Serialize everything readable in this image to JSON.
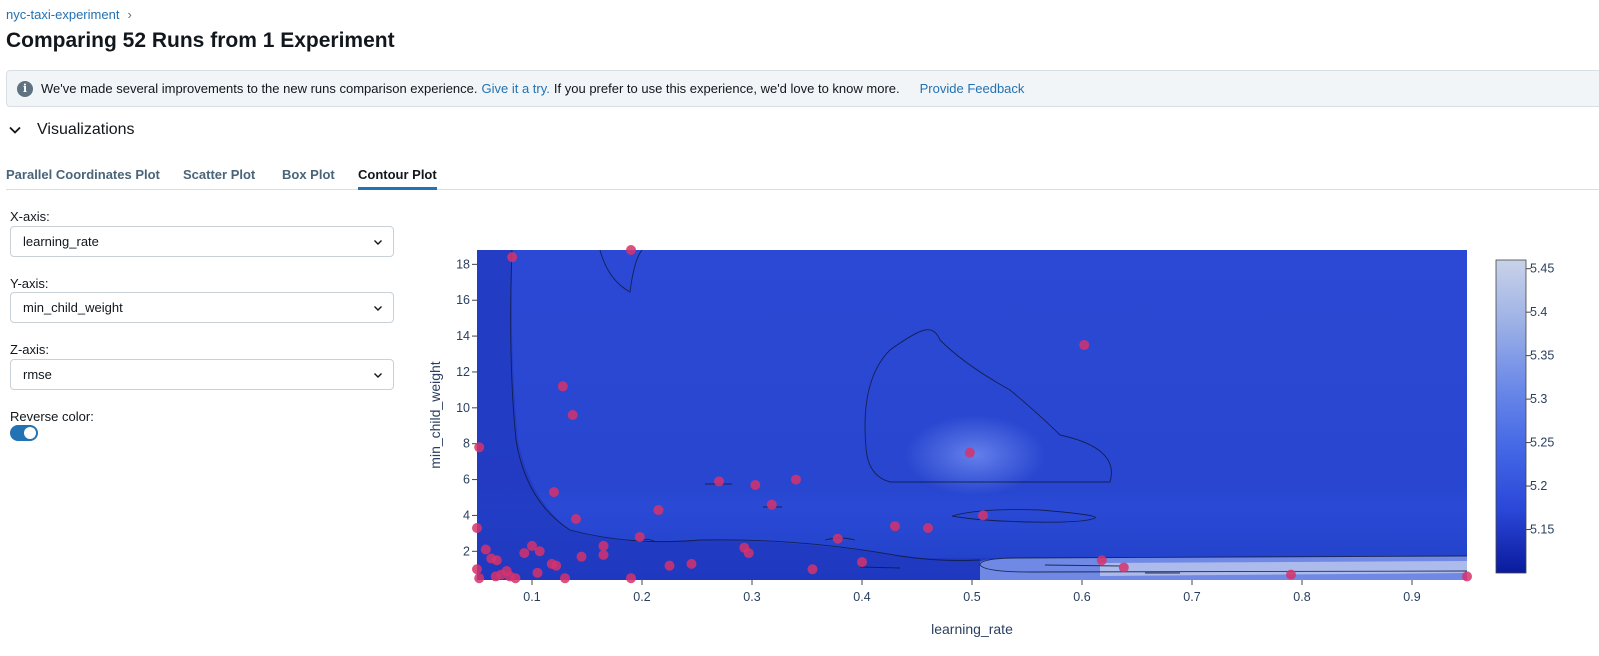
{
  "breadcrumb": {
    "experiment": "nyc-taxi-experiment",
    "separator": "›"
  },
  "page": {
    "title": "Comparing 52 Runs from 1 Experiment"
  },
  "banner": {
    "icon": "info-icon",
    "message_a": "We've made several improvements to the new runs comparison experience.",
    "link_text": "Give it a try.",
    "message_b": "If you prefer to use this experience, we'd love to know more.",
    "feedback": "Provide Feedback"
  },
  "visualizations": {
    "label": "Visualizations",
    "icon": "chevron-down-icon"
  },
  "tabs": [
    {
      "label": "Parallel Coordinates Plot",
      "active": false
    },
    {
      "label": "Scatter Plot",
      "active": false
    },
    {
      "label": "Box Plot",
      "active": false
    },
    {
      "label": "Contour Plot",
      "active": true
    }
  ],
  "controls": {
    "x_axis": {
      "label": "X-axis:",
      "value": "learning_rate"
    },
    "y_axis": {
      "label": "Y-axis:",
      "value": "min_child_weight"
    },
    "z_axis": {
      "label": "Z-axis:",
      "value": "rmse"
    },
    "reverse_color": {
      "label": "Reverse color:",
      "on": true
    }
  },
  "chart_data": {
    "type": "contour",
    "xlabel": "learning_rate",
    "ylabel": "min_child_weight",
    "xlim": [
      0.05,
      0.95
    ],
    "ylim": [
      0.4,
      18.8
    ],
    "x_ticks": [
      "0.1",
      "0.2",
      "0.3",
      "0.4",
      "0.5",
      "0.6",
      "0.7",
      "0.8",
      "0.9"
    ],
    "y_ticks": [
      "2",
      "4",
      "6",
      "8",
      "10",
      "12",
      "14",
      "16",
      "18"
    ],
    "colorbar": {
      "range": [
        5.1,
        5.46
      ],
      "ticks": [
        "5.15",
        "5.2",
        "5.25",
        "5.3",
        "5.35",
        "5.4",
        "5.45"
      ],
      "colors": [
        "#0a1a9c",
        "#2a47d8",
        "#4468e6",
        "#6c8ae8",
        "#9db1e6",
        "#c9d2e8"
      ]
    },
    "point_color": "#d6336c",
    "points": [
      [
        0.082,
        18.4
      ],
      [
        0.19,
        18.8
      ],
      [
        0.052,
        7.8
      ],
      [
        0.128,
        11.2
      ],
      [
        0.137,
        9.6
      ],
      [
        0.12,
        5.3
      ],
      [
        0.14,
        3.8
      ],
      [
        0.05,
        3.3
      ],
      [
        0.058,
        2.1
      ],
      [
        0.063,
        1.6
      ],
      [
        0.068,
        1.5
      ],
      [
        0.05,
        1.0
      ],
      [
        0.052,
        0.5
      ],
      [
        0.067,
        0.6
      ],
      [
        0.072,
        0.7
      ],
      [
        0.077,
        0.9
      ],
      [
        0.08,
        0.6
      ],
      [
        0.085,
        0.5
      ],
      [
        0.093,
        1.9
      ],
      [
        0.1,
        2.3
      ],
      [
        0.105,
        0.8
      ],
      [
        0.107,
        2.0
      ],
      [
        0.118,
        1.3
      ],
      [
        0.122,
        1.2
      ],
      [
        0.13,
        0.5
      ],
      [
        0.145,
        1.7
      ],
      [
        0.165,
        2.3
      ],
      [
        0.165,
        1.8
      ],
      [
        0.19,
        0.5
      ],
      [
        0.198,
        2.8
      ],
      [
        0.215,
        4.3
      ],
      [
        0.225,
        1.2
      ],
      [
        0.245,
        1.3
      ],
      [
        0.27,
        5.9
      ],
      [
        0.293,
        2.2
      ],
      [
        0.297,
        1.9
      ],
      [
        0.303,
        5.7
      ],
      [
        0.318,
        4.6
      ],
      [
        0.34,
        6.0
      ],
      [
        0.355,
        1.0
      ],
      [
        0.378,
        2.7
      ],
      [
        0.4,
        1.4
      ],
      [
        0.43,
        3.4
      ],
      [
        0.46,
        3.3
      ],
      [
        0.498,
        7.5
      ],
      [
        0.51,
        4.0
      ],
      [
        0.602,
        13.5
      ],
      [
        0.618,
        1.5
      ],
      [
        0.638,
        1.1
      ],
      [
        0.79,
        0.7
      ],
      [
        0.95,
        0.6
      ]
    ]
  }
}
